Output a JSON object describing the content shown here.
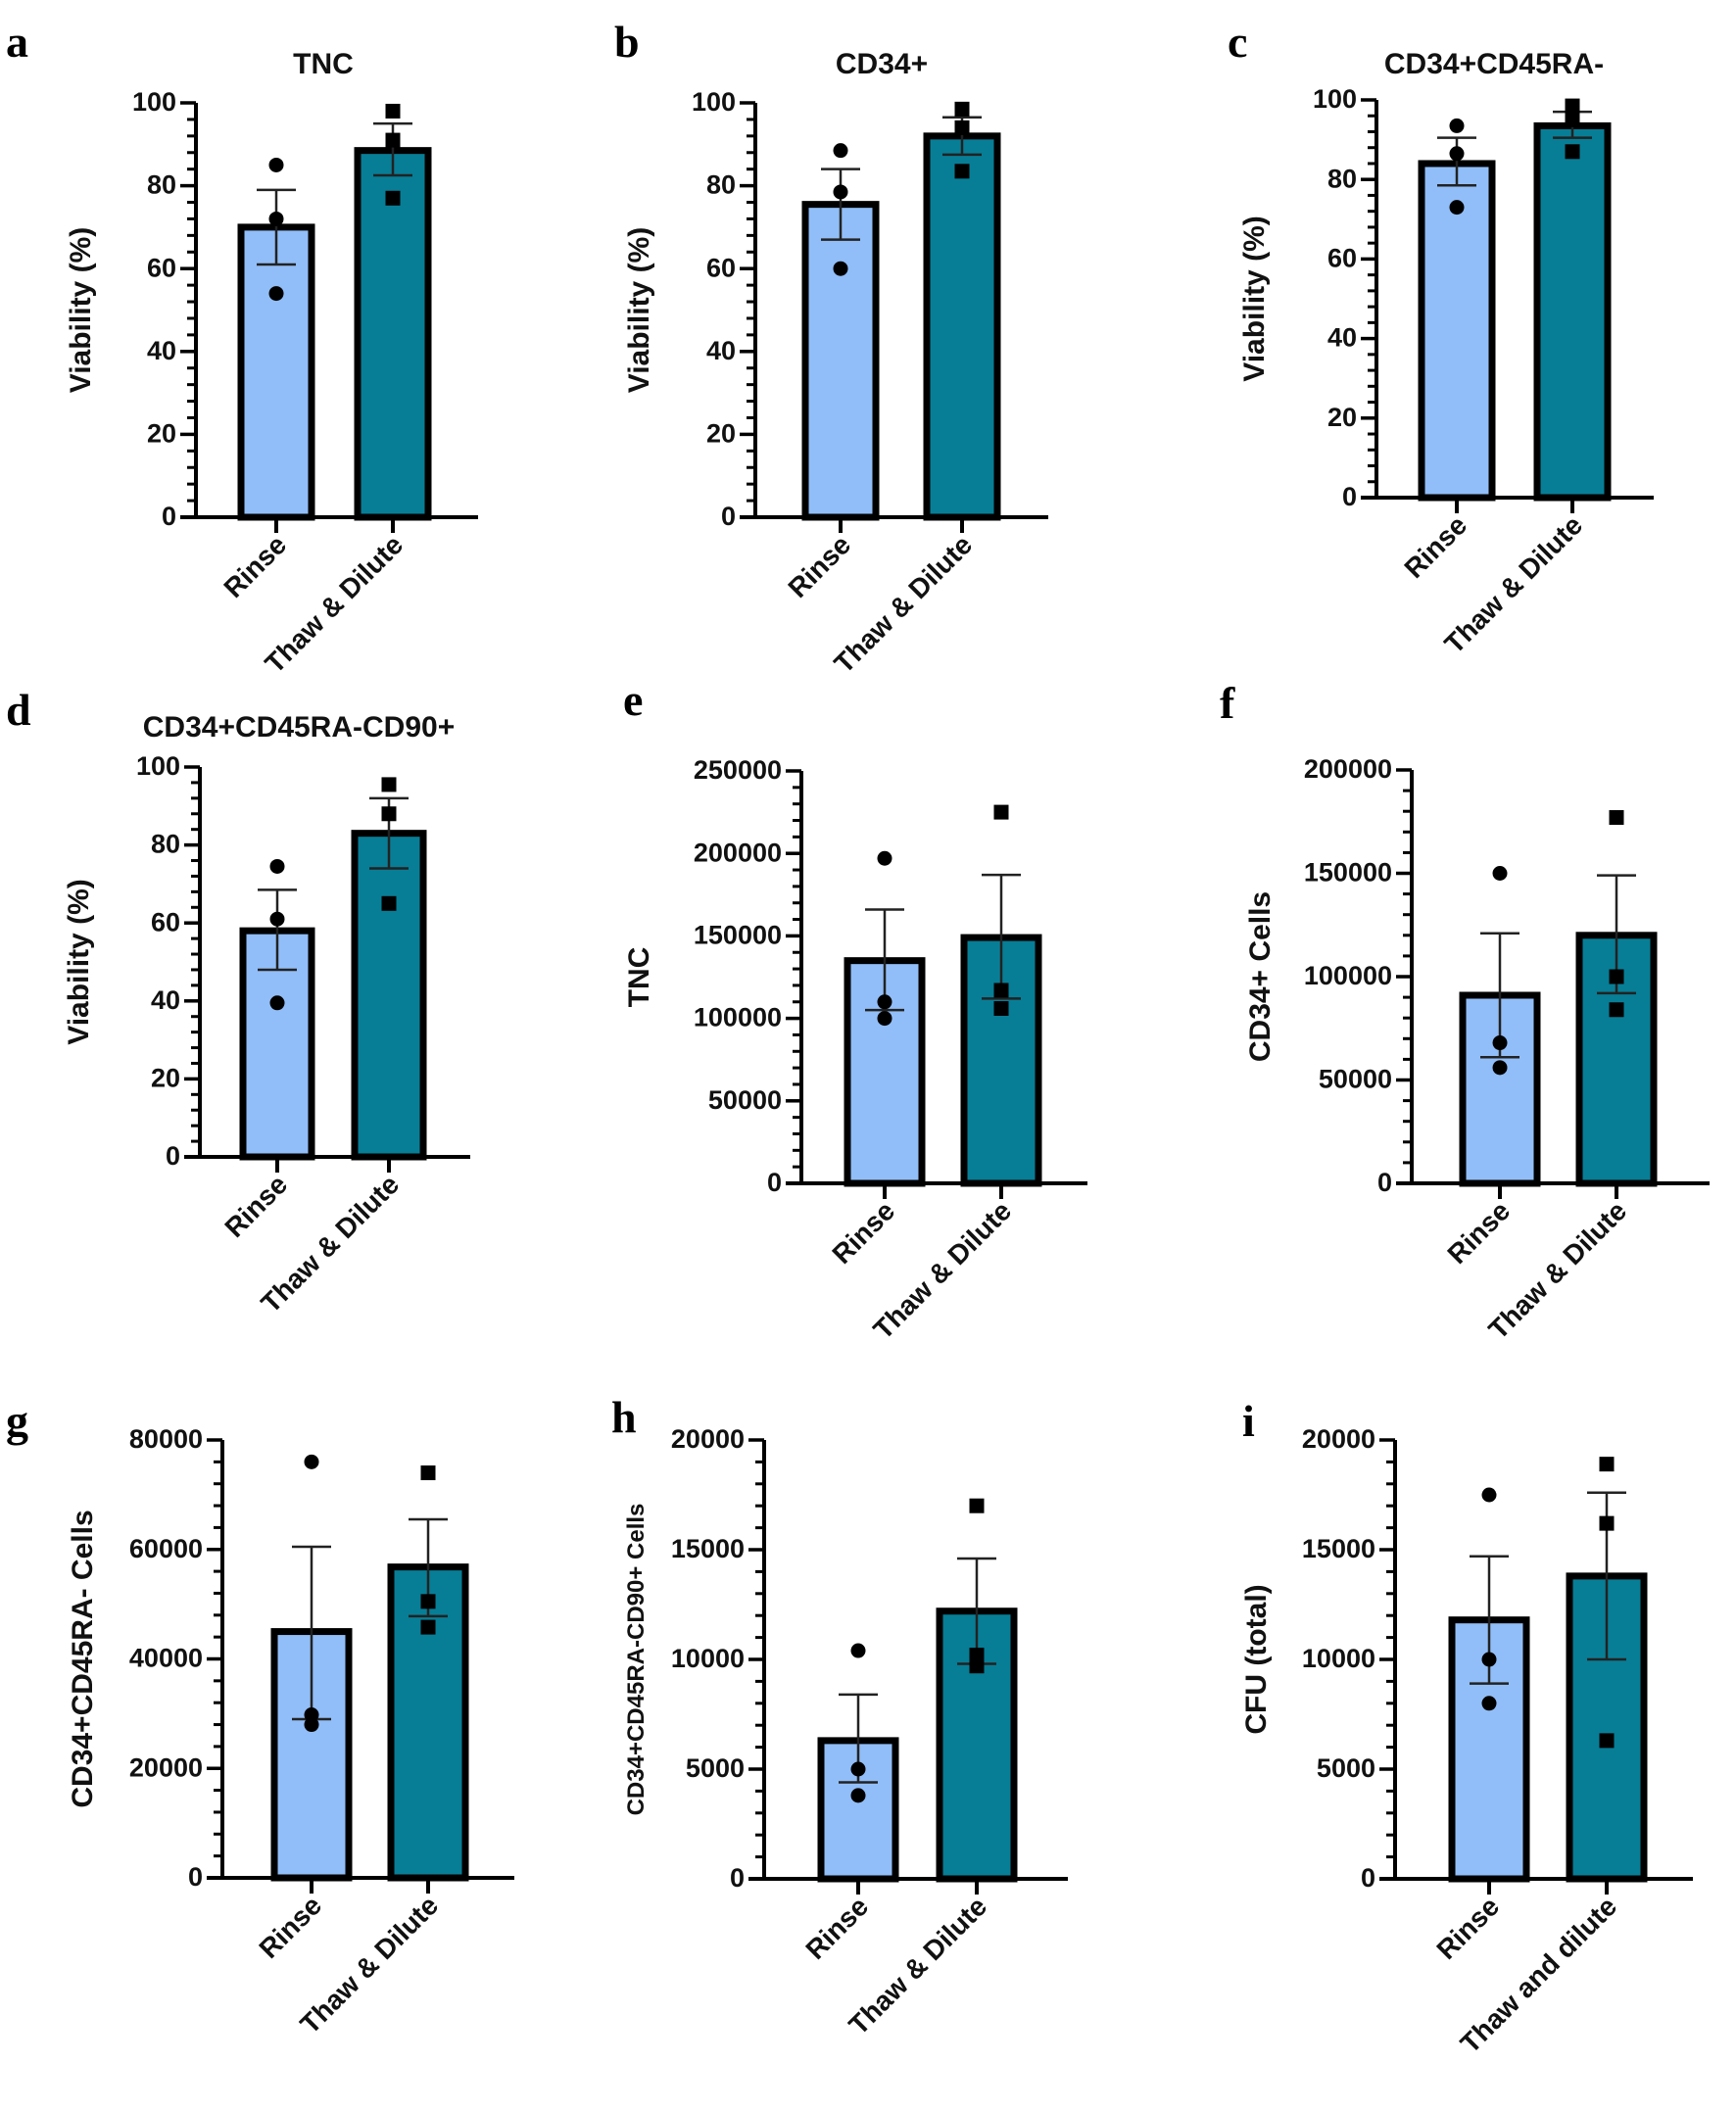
{
  "colors": {
    "rinse": "#91BEF8",
    "thaw": "#077E96",
    "ink": "#000000"
  },
  "chart_data": [
    {
      "panel": "a",
      "type": "bar",
      "title": "TNC",
      "ylabel": "Viability (%)",
      "xlabel": "",
      "categories": [
        "Rinse",
        "Thaw & Dilute"
      ],
      "ylim": [
        0,
        100
      ],
      "yticks": [
        0,
        20,
        40,
        60,
        80,
        100
      ],
      "minor_ticks": 4,
      "values": [
        70,
        88.5
      ],
      "error_low": [
        61,
        82.5
      ],
      "error_high": [
        79,
        95
      ],
      "points": [
        [
          85,
          72,
          54
        ],
        [
          98,
          91,
          77
        ]
      ],
      "markers": [
        "circle",
        "square"
      ]
    },
    {
      "panel": "b",
      "type": "bar",
      "title": "CD34+",
      "ylabel": "Viability (%)",
      "xlabel": "",
      "categories": [
        "Rinse",
        "Thaw & Dilute"
      ],
      "ylim": [
        0,
        100
      ],
      "yticks": [
        0,
        20,
        40,
        60,
        80,
        100
      ],
      "minor_ticks": 4,
      "values": [
        75.5,
        92
      ],
      "error_low": [
        67,
        87.5
      ],
      "error_high": [
        84,
        96.5
      ],
      "points": [
        [
          88.5,
          78.5,
          60
        ],
        [
          98.5,
          94,
          83.5
        ]
      ],
      "markers": [
        "circle",
        "square"
      ]
    },
    {
      "panel": "c",
      "type": "bar",
      "title": "CD34+CD45RA-",
      "ylabel": "Viability (%)",
      "xlabel": "",
      "categories": [
        "Rinse",
        "Thaw & Dilute"
      ],
      "ylim": [
        0,
        100
      ],
      "yticks": [
        0,
        20,
        40,
        60,
        80,
        100
      ],
      "minor_ticks": 4,
      "values": [
        84,
        93.5
      ],
      "error_low": [
        78.5,
        90.5
      ],
      "error_high": [
        90.5,
        97
      ],
      "points": [
        [
          93.5,
          86.5,
          73
        ],
        [
          98.5,
          95,
          87
        ]
      ],
      "markers": [
        "circle",
        "square"
      ]
    },
    {
      "panel": "d",
      "type": "bar",
      "title": "CD34+CD45RA-CD90+",
      "ylabel": "Viability (%)",
      "xlabel": "",
      "categories": [
        "Rinse",
        "Thaw & Dilute"
      ],
      "ylim": [
        0,
        100
      ],
      "yticks": [
        0,
        20,
        40,
        60,
        80,
        100
      ],
      "minor_ticks": 4,
      "values": [
        58,
        83
      ],
      "error_low": [
        48,
        74
      ],
      "error_high": [
        68.5,
        92
      ],
      "points": [
        [
          74.5,
          61,
          39.5
        ],
        [
          95.5,
          88,
          65
        ]
      ],
      "markers": [
        "circle",
        "square"
      ]
    },
    {
      "panel": "e",
      "type": "bar",
      "title": "",
      "ylabel": "TNC",
      "xlabel": "",
      "categories": [
        "Rinse",
        "Thaw & Dilute"
      ],
      "ylim": [
        0,
        250000
      ],
      "yticks": [
        0,
        50000,
        100000,
        150000,
        200000,
        250000
      ],
      "minor_ticks": 4,
      "values": [
        135000,
        149000
      ],
      "error_low": [
        105000,
        112000
      ],
      "error_high": [
        166000,
        187000
      ],
      "points": [
        [
          197000,
          110000,
          100000
        ],
        [
          225000,
          117000,
          106000
        ]
      ],
      "markers": [
        "circle",
        "square"
      ]
    },
    {
      "panel": "f",
      "type": "bar",
      "title": "",
      "ylabel": "CD34+ Cells",
      "xlabel": "",
      "categories": [
        "Rinse",
        "Thaw & Dilute"
      ],
      "ylim": [
        0,
        200000
      ],
      "yticks": [
        0,
        50000,
        100000,
        150000,
        200000
      ],
      "minor_ticks": 4,
      "values": [
        91000,
        120000
      ],
      "error_low": [
        61000,
        92000
      ],
      "error_high": [
        121000,
        149000
      ],
      "points": [
        [
          150000,
          68000,
          56000
        ],
        [
          177000,
          100000,
          84000
        ]
      ],
      "markers": [
        "circle",
        "square"
      ]
    },
    {
      "panel": "g",
      "type": "bar",
      "title": "",
      "ylabel": "CD34+CD45RA- Cells",
      "xlabel": "",
      "categories": [
        "Rinse",
        "Thaw & Dilute"
      ],
      "ylim": [
        0,
        80000
      ],
      "yticks": [
        0,
        20000,
        40000,
        60000,
        80000
      ],
      "minor_ticks": 4,
      "values": [
        45000,
        56800
      ],
      "error_low": [
        29000,
        47800
      ],
      "error_high": [
        60500,
        65500
      ],
      "points": [
        [
          76000,
          28000,
          29800
        ],
        [
          74000,
          50500,
          45800
        ]
      ],
      "markers": [
        "circle",
        "square"
      ]
    },
    {
      "panel": "h",
      "type": "bar",
      "title": "",
      "ylabel": "CD34+CD45RA-CD90+ Cells",
      "xlabel": "",
      "categories": [
        "Rinse",
        "Thaw & Dilute"
      ],
      "ylim": [
        0,
        20000
      ],
      "yticks": [
        0,
        5000,
        10000,
        15000,
        20000
      ],
      "minor_ticks": 4,
      "values": [
        6300,
        12200
      ],
      "error_low": [
        4400,
        9800
      ],
      "error_high": [
        8400,
        14600
      ],
      "points": [
        [
          10400,
          5000,
          3800
        ],
        [
          17000,
          9700,
          10200
        ]
      ],
      "markers": [
        "circle",
        "square"
      ]
    },
    {
      "panel": "i",
      "type": "bar",
      "title": "",
      "ylabel": "CFU (total)",
      "xlabel": "",
      "categories": [
        "Rinse",
        "Thaw and dilute"
      ],
      "ylim": [
        0,
        20000
      ],
      "yticks": [
        0,
        5000,
        10000,
        15000,
        20000
      ],
      "minor_ticks": 4,
      "values": [
        11800,
        13800
      ],
      "error_low": [
        8900,
        10000
      ],
      "error_high": [
        14700,
        17600
      ],
      "points": [
        [
          17500,
          10000,
          8000
        ],
        [
          18900,
          16200,
          6300
        ]
      ],
      "markers": [
        "circle",
        "square"
      ]
    }
  ]
}
